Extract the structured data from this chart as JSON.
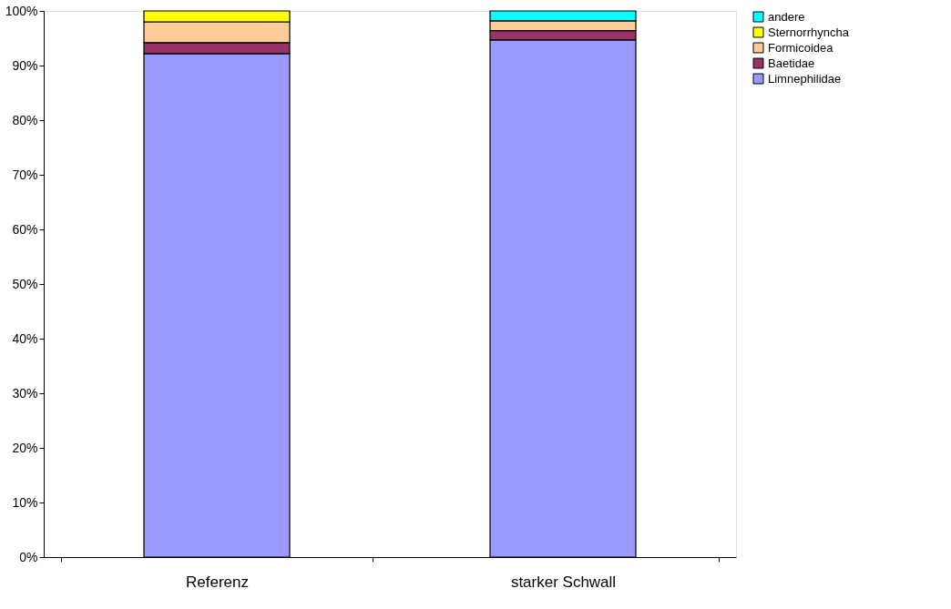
{
  "chart_data": {
    "type": "bar",
    "stacked": true,
    "categories": [
      "Referenz",
      "starker Schwall"
    ],
    "series": [
      {
        "name": "Limnephilidae",
        "color": "#9999ff",
        "values": [
          92.2,
          94.7
        ]
      },
      {
        "name": "Baetidae",
        "color": "#993366",
        "values": [
          2.0,
          1.7
        ]
      },
      {
        "name": "Formicoidea",
        "color": "#ffcc99",
        "values": [
          3.8,
          1.8
        ]
      },
      {
        "name": "Sternorrhyncha",
        "color": "#ffff00",
        "values": [
          2.0,
          null
        ]
      },
      {
        "name": "andere",
        "color": "#00ffff",
        "values": [
          null,
          1.8
        ]
      }
    ],
    "ylim": [
      0,
      100
    ],
    "yticks": [
      {
        "value": 0,
        "label": "0%"
      },
      {
        "value": 10,
        "label": "10%"
      },
      {
        "value": 20,
        "label": "20%"
      },
      {
        "value": 30,
        "label": "30%"
      },
      {
        "value": 40,
        "label": "40%"
      },
      {
        "value": 50,
        "label": "50%"
      },
      {
        "value": 60,
        "label": "60%"
      },
      {
        "value": 70,
        "label": "70%"
      },
      {
        "value": 80,
        "label": "80%"
      },
      {
        "value": 90,
        "label": "90%"
      },
      {
        "value": 100,
        "label": "100%"
      }
    ],
    "grid": false,
    "legend": "right"
  }
}
